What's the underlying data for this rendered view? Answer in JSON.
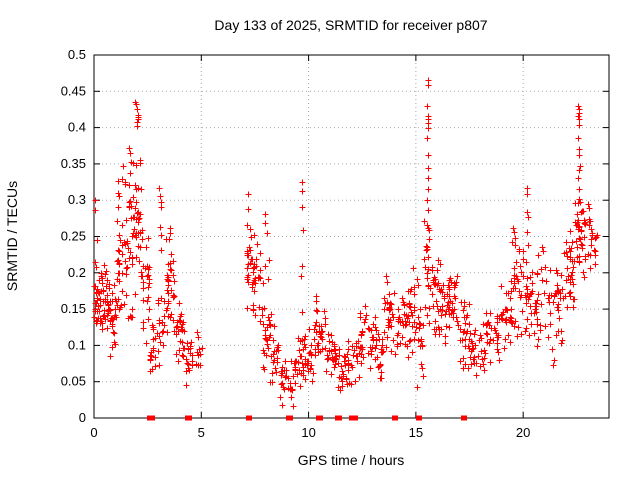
{
  "title": "Day 133 of 2025, SRMTID for receiver p807",
  "chart_data": {
    "type": "scatter",
    "title": "Day 133 of 2025, SRMTID for receiver p807",
    "xlabel": "GPS time / hours",
    "ylabel": "SRMTID / TECUs",
    "xlim": [
      0,
      24
    ],
    "ylim": [
      0,
      0.5
    ],
    "grid": true,
    "grid_color": "#a8a8a8",
    "border_color": "#000000",
    "marker": "plus",
    "marker_color": "#ff0000",
    "legend": "none",
    "xticks": {
      "values": [
        0,
        5,
        10,
        15,
        20
      ],
      "labels": [
        "0",
        "5",
        "10",
        "15",
        "20"
      ]
    },
    "yticks": {
      "values": [
        0,
        0.05,
        0.1,
        0.15,
        0.2,
        0.25,
        0.3,
        0.35,
        0.4,
        0.45,
        0.5
      ],
      "labels": [
        "0",
        "0.05",
        "0.1",
        "0.15",
        "0.2",
        "0.25",
        "0.3",
        "0.35",
        "0.4",
        "0.45",
        "0.5"
      ]
    },
    "seed": 20250513,
    "bands_note": "dense scatter summarized as [hour_start, hour_end, n_points, value_min, value_max]; gap with no data from 5.05 to 7.1 h and after 23.45 h",
    "bands": [
      [
        0.0,
        0.3,
        30,
        0.1,
        0.26
      ],
      [
        0.3,
        0.7,
        34,
        0.1,
        0.22
      ],
      [
        0.7,
        1.0,
        24,
        0.07,
        0.2
      ],
      [
        1.0,
        1.4,
        28,
        0.1,
        0.3
      ],
      [
        1.1,
        1.5,
        8,
        0.28,
        0.35
      ],
      [
        1.4,
        1.8,
        28,
        0.12,
        0.33
      ],
      [
        1.8,
        2.25,
        38,
        0.15,
        0.38
      ],
      [
        2.25,
        2.6,
        24,
        0.1,
        0.26
      ],
      [
        2.6,
        2.9,
        16,
        0.05,
        0.14
      ],
      [
        2.9,
        3.3,
        18,
        0.07,
        0.2
      ],
      [
        3.3,
        3.8,
        32,
        0.1,
        0.26
      ],
      [
        3.8,
        4.2,
        26,
        0.07,
        0.17
      ],
      [
        4.2,
        4.6,
        16,
        0.03,
        0.12
      ],
      [
        4.6,
        5.05,
        10,
        0.04,
        0.13
      ],
      [
        7.1,
        7.35,
        18,
        0.15,
        0.3
      ],
      [
        7.35,
        7.8,
        28,
        0.12,
        0.26
      ],
      [
        7.8,
        8.2,
        28,
        0.06,
        0.22
      ],
      [
        8.2,
        8.6,
        20,
        0.03,
        0.15
      ],
      [
        8.6,
        9.3,
        26,
        0.01,
        0.09
      ],
      [
        9.3,
        9.8,
        24,
        0.03,
        0.12
      ],
      [
        9.8,
        10.3,
        28,
        0.04,
        0.13
      ],
      [
        10.3,
        10.8,
        28,
        0.06,
        0.17
      ],
      [
        10.8,
        11.3,
        26,
        0.05,
        0.13
      ],
      [
        11.3,
        11.8,
        22,
        0.03,
        0.1
      ],
      [
        11.8,
        12.4,
        28,
        0.04,
        0.12
      ],
      [
        12.4,
        13.1,
        32,
        0.06,
        0.16
      ],
      [
        13.1,
        13.5,
        22,
        0.05,
        0.13
      ],
      [
        13.5,
        13.8,
        18,
        0.08,
        0.2
      ],
      [
        13.8,
        14.5,
        32,
        0.08,
        0.19
      ],
      [
        14.5,
        15.0,
        28,
        0.08,
        0.21
      ],
      [
        15.0,
        15.35,
        18,
        0.03,
        0.19
      ],
      [
        15.35,
        15.75,
        22,
        0.1,
        0.3
      ],
      [
        15.75,
        16.3,
        32,
        0.09,
        0.22
      ],
      [
        16.3,
        17.0,
        38,
        0.1,
        0.2
      ],
      [
        17.0,
        17.5,
        28,
        0.06,
        0.17
      ],
      [
        17.5,
        18.2,
        28,
        0.05,
        0.14
      ],
      [
        18.2,
        18.9,
        30,
        0.07,
        0.16
      ],
      [
        18.9,
        19.5,
        28,
        0.09,
        0.2
      ],
      [
        19.5,
        20.0,
        26,
        0.1,
        0.25
      ],
      [
        20.0,
        20.5,
        24,
        0.1,
        0.24
      ],
      [
        20.5,
        21.2,
        28,
        0.09,
        0.23
      ],
      [
        21.2,
        21.9,
        32,
        0.08,
        0.24
      ],
      [
        21.9,
        22.4,
        32,
        0.13,
        0.28
      ],
      [
        22.4,
        22.8,
        28,
        0.2,
        0.32
      ],
      [
        22.8,
        23.2,
        18,
        0.17,
        0.3
      ],
      [
        23.2,
        23.45,
        8,
        0.19,
        0.27
      ]
    ],
    "peak_points_note": "explicit [hour, value] points for spikes/outliers read from the plot",
    "peak_points": [
      [
        0.03,
        0.3
      ],
      [
        0.05,
        0.287
      ],
      [
        1.93,
        0.435
      ],
      [
        1.98,
        0.432
      ],
      [
        2.0,
        0.425
      ],
      [
        2.03,
        0.418
      ],
      [
        2.05,
        0.415
      ],
      [
        2.06,
        0.412
      ],
      [
        2.02,
        0.408
      ],
      [
        1.99,
        0.402
      ],
      [
        1.65,
        0.372
      ],
      [
        1.7,
        0.365
      ],
      [
        1.74,
        0.352
      ],
      [
        1.68,
        0.338
      ],
      [
        3.05,
        0.317
      ],
      [
        3.08,
        0.306
      ],
      [
        3.1,
        0.297
      ],
      [
        3.12,
        0.291
      ],
      [
        3.09,
        0.263
      ],
      [
        3.13,
        0.252
      ],
      [
        3.11,
        0.232
      ],
      [
        3.52,
        0.262
      ],
      [
        3.56,
        0.255
      ],
      [
        3.48,
        0.247
      ],
      [
        7.18,
        0.308
      ],
      [
        7.15,
        0.266
      ],
      [
        7.95,
        0.281
      ],
      [
        7.97,
        0.268
      ],
      [
        8.04,
        0.255
      ],
      [
        9.68,
        0.325
      ],
      [
        9.7,
        0.312
      ],
      [
        9.67,
        0.291
      ],
      [
        9.72,
        0.259
      ],
      [
        9.69,
        0.21
      ],
      [
        9.66,
        0.196
      ],
      [
        9.71,
        0.146
      ],
      [
        13.62,
        0.196
      ],
      [
        13.66,
        0.188
      ],
      [
        14.88,
        0.206
      ],
      [
        15.06,
        0.192
      ],
      [
        15.12,
        0.183
      ],
      [
        15.55,
        0.465
      ],
      [
        15.56,
        0.458
      ],
      [
        15.54,
        0.43
      ],
      [
        15.57,
        0.416
      ],
      [
        15.55,
        0.412
      ],
      [
        15.58,
        0.406
      ],
      [
        15.56,
        0.399
      ],
      [
        15.54,
        0.385
      ],
      [
        15.57,
        0.362
      ],
      [
        15.55,
        0.345
      ],
      [
        15.58,
        0.33
      ],
      [
        15.56,
        0.316
      ],
      [
        15.54,
        0.3
      ],
      [
        15.57,
        0.286
      ],
      [
        15.55,
        0.262
      ],
      [
        15.53,
        0.233
      ],
      [
        16.05,
        0.218
      ],
      [
        16.12,
        0.212
      ],
      [
        19.52,
        0.262
      ],
      [
        19.56,
        0.256
      ],
      [
        19.6,
        0.248
      ],
      [
        19.48,
        0.243
      ],
      [
        19.64,
        0.238
      ],
      [
        20.18,
        0.317
      ],
      [
        20.2,
        0.308
      ],
      [
        20.16,
        0.284
      ],
      [
        20.22,
        0.277
      ],
      [
        20.19,
        0.256
      ],
      [
        20.21,
        0.238
      ],
      [
        20.88,
        0.236
      ],
      [
        20.92,
        0.23
      ],
      [
        21.35,
        0.095
      ],
      [
        21.45,
        0.08
      ],
      [
        21.4,
        0.073
      ],
      [
        22.55,
        0.43
      ],
      [
        22.58,
        0.425
      ],
      [
        22.6,
        0.42
      ],
      [
        22.57,
        0.416
      ],
      [
        22.62,
        0.412
      ],
      [
        22.59,
        0.403
      ],
      [
        22.56,
        0.386
      ],
      [
        22.61,
        0.371
      ],
      [
        22.58,
        0.362
      ],
      [
        22.63,
        0.347
      ],
      [
        22.6,
        0.341
      ],
      [
        22.57,
        0.331
      ],
      [
        22.62,
        0.316
      ],
      [
        22.59,
        0.302
      ],
      [
        23.0,
        0.295
      ],
      [
        23.1,
        0.272
      ],
      [
        23.2,
        0.252
      ],
      [
        23.3,
        0.231
      ],
      [
        23.35,
        0.212
      ]
    ],
    "zero_points_note": "hours where values of 0 are plotted as solid red marks on the x-axis",
    "zero_points": [
      2.58,
      2.62,
      2.72,
      4.35,
      4.45,
      7.18,
      7.24,
      9.05,
      9.12,
      10.46,
      10.52,
      11.32,
      11.42,
      11.98,
      12.06,
      12.14,
      14.0,
      14.05,
      15.08,
      15.14,
      17.18,
      17.26
    ]
  }
}
